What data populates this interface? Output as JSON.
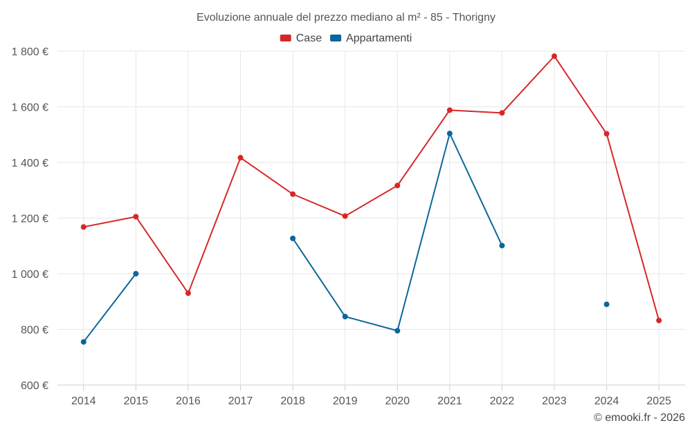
{
  "chart_data": {
    "type": "line",
    "title": "Evoluzione annuale del prezzo mediano al m² - 85 - Thorigny",
    "categories": [
      "2014",
      "2015",
      "2016",
      "2017",
      "2018",
      "2019",
      "2020",
      "2021",
      "2022",
      "2023",
      "2024",
      "2025"
    ],
    "ylim": [
      600,
      1800
    ],
    "yticks": [
      600,
      800,
      1000,
      1200,
      1400,
      1600,
      1800
    ],
    "ytick_labels": [
      "600 €",
      "800 €",
      "1 000 €",
      "1 200 €",
      "1 400 €",
      "1 600 €",
      "1 800 €"
    ],
    "grid": true,
    "legend_position": "top-center",
    "series": [
      {
        "name": "Case",
        "color": "#d62728",
        "values": [
          1168,
          1205,
          930,
          1417,
          1286,
          1207,
          1317,
          1588,
          1578,
          1782,
          1503,
          832
        ]
      },
      {
        "name": "Appartamenti",
        "color": "#0b6699",
        "values": [
          755,
          1000,
          null,
          null,
          1127,
          846,
          795,
          1504,
          1101,
          null,
          890,
          null
        ]
      }
    ]
  },
  "credit": "© emooki.fr - 2026"
}
